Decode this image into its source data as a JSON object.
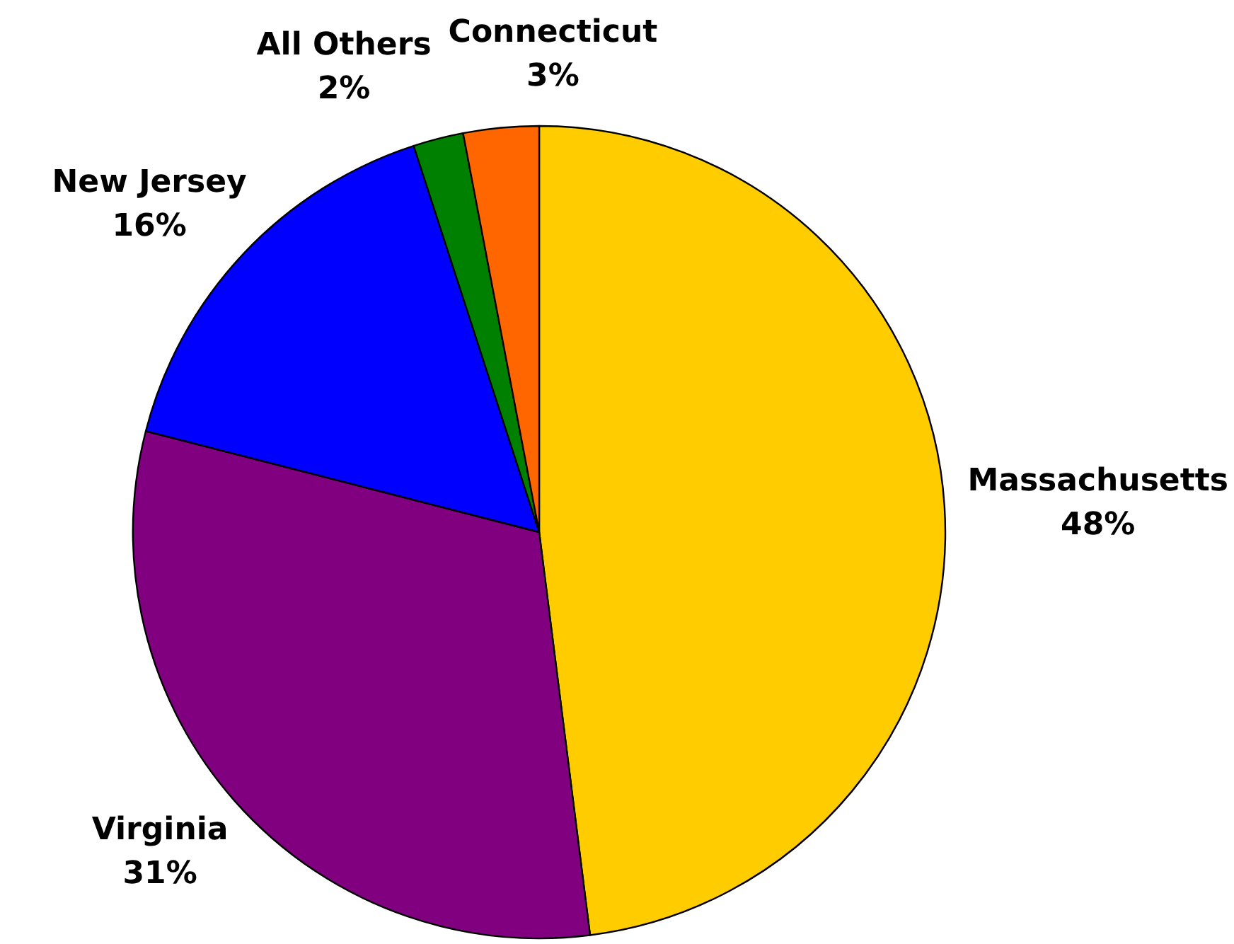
{
  "chart_data": {
    "type": "pie",
    "categories": [
      "Massachusetts",
      "Virginia",
      "New Jersey",
      "All Others",
      "Connecticut"
    ],
    "values": [
      48,
      31,
      16,
      2,
      3
    ],
    "colors": [
      "#ffcc00",
      "#800080",
      "#0000ff",
      "#008000",
      "#ff6600"
    ],
    "value_labels": [
      "48%",
      "31%",
      "16%",
      "2%",
      "3%"
    ]
  }
}
